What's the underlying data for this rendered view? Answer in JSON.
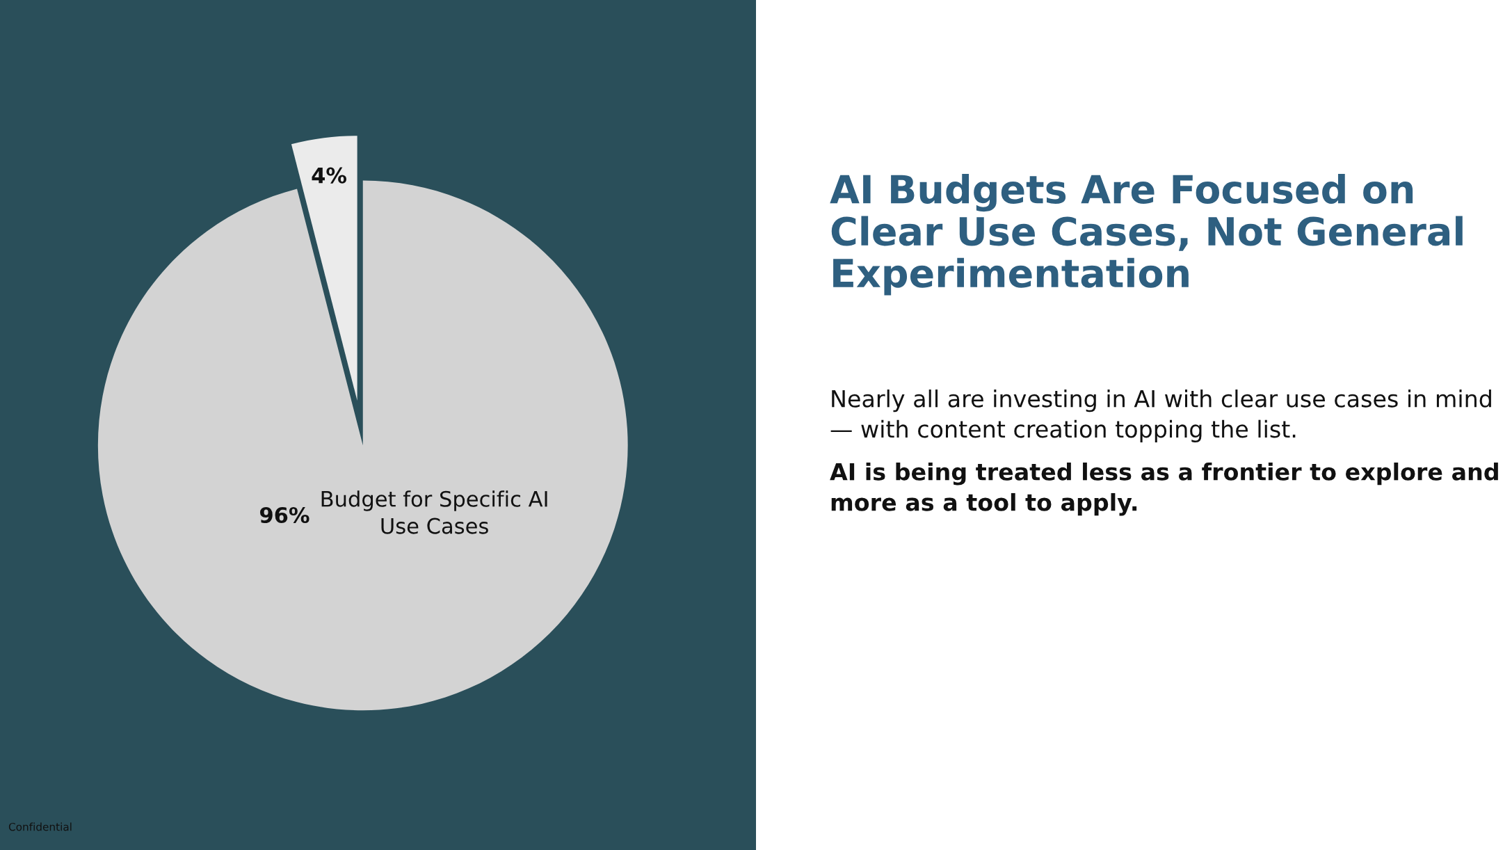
{
  "chart_data": {
    "type": "pie",
    "title": "AI Budgets Are Focused on Clear Use Cases, Not General Experimentation",
    "subtitle": "Nearly all are investing in AI with clear use cases in mind — with content creation topping the list.",
    "annotations": [
      "AI is being treated less as a frontier to explore and more as a tool to apply.",
      "Confidential"
    ],
    "categories": [
      "Budget for Specific AI Use Cases",
      null
    ],
    "values": [
      96,
      4
    ],
    "colors": [
      "#d3d3d3",
      "#ebebeb"
    ],
    "value_labels": [
      "96%",
      "4%"
    ],
    "legend": false
  }
}
